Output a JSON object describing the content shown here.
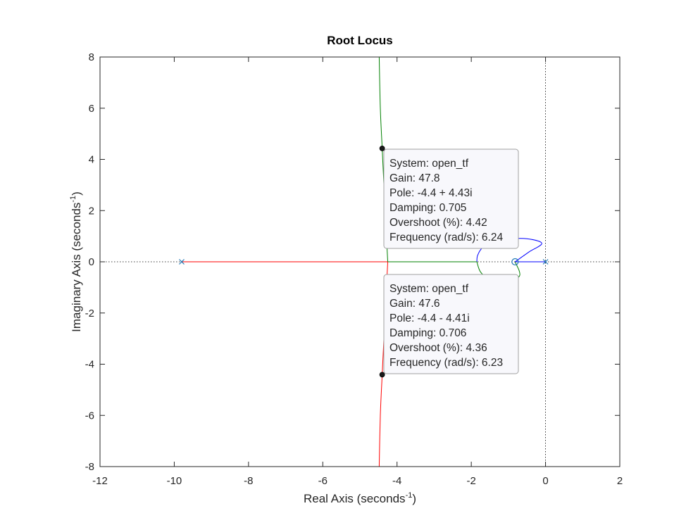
{
  "chart_data": {
    "type": "line",
    "title": "Root Locus",
    "xlabel": "Real Axis (seconds",
    "ylabel": "Imaginary Axis (seconds",
    "label_exponent": "-1",
    "label_close": ")",
    "xlim": [
      -12,
      2
    ],
    "ylim": [
      -8,
      8
    ],
    "xticks": [
      -12,
      -10,
      -8,
      -6,
      -4,
      -2,
      0,
      2
    ],
    "yticks": [
      -8,
      -6,
      -4,
      -2,
      0,
      2,
      4,
      6,
      8
    ],
    "grid": false,
    "colors": {
      "blue": "#0000ff",
      "green": "#008000",
      "red": "#ff0000",
      "marker": "#1f77b4",
      "axes": "#262626",
      "tip_fill": "#f8f8fc",
      "tip_border": "#a0a0a0"
    },
    "poles": [
      {
        "x": 0,
        "y": 0
      },
      {
        "x": -9.8,
        "y": 0
      }
    ],
    "zeros": [
      {
        "x": -0.82,
        "y": 0
      }
    ],
    "series": [
      {
        "color": "blue",
        "points": [
          [
            0,
            0
          ],
          [
            -0.82,
            0
          ]
        ]
      },
      {
        "color": "blue",
        "points": [
          [
            -0.82,
            0
          ],
          [
            -0.45,
            0.38
          ],
          [
            -0.1,
            0.72
          ],
          [
            -0.5,
            0.9
          ],
          [
            -1.0,
            0.89
          ],
          [
            -1.4,
            0.78
          ],
          [
            -1.7,
            0.55
          ],
          [
            -1.83,
            0.25
          ],
          [
            -1.85,
            0
          ]
        ]
      },
      {
        "color": "green",
        "points": [
          [
            -0.82,
            0
          ],
          [
            -0.7,
            -0.55
          ],
          [
            -1.1,
            -0.82
          ],
          [
            -1.5,
            -0.7
          ],
          [
            -1.75,
            -0.4
          ],
          [
            -1.85,
            0
          ]
        ]
      },
      {
        "color": "green",
        "points": [
          [
            -1.85,
            0
          ],
          [
            -4.25,
            0
          ]
        ]
      },
      {
        "color": "green",
        "points": [
          [
            -4.25,
            0
          ],
          [
            -4.32,
            2
          ],
          [
            -4.4,
            4.43
          ],
          [
            -4.45,
            6
          ],
          [
            -4.48,
            8
          ]
        ]
      },
      {
        "color": "red",
        "points": [
          [
            -9.8,
            0
          ],
          [
            -4.25,
            0
          ]
        ]
      },
      {
        "color": "red",
        "points": [
          [
            -4.25,
            0
          ],
          [
            -4.32,
            -2
          ],
          [
            -4.4,
            -4.41
          ],
          [
            -4.45,
            -6
          ],
          [
            -4.48,
            -8
          ]
        ]
      }
    ],
    "datatips": [
      {
        "point": {
          "x": -4.4,
          "y": 4.43
        },
        "lines": [
          "System: open_tf",
          "Gain: 47.8",
          "Pole: -4.4 + 4.43i",
          "Damping: 0.705",
          "Overshoot (%): 4.42",
          "Frequency (rad/s): 6.24"
        ]
      },
      {
        "point": {
          "x": -4.4,
          "y": -4.41
        },
        "lines": [
          "System: open_tf",
          "Gain: 47.6",
          "Pole: -4.4 - 4.41i",
          "Damping: 0.706",
          "Overshoot (%): 4.36",
          "Frequency (rad/s): 6.23"
        ]
      }
    ]
  }
}
